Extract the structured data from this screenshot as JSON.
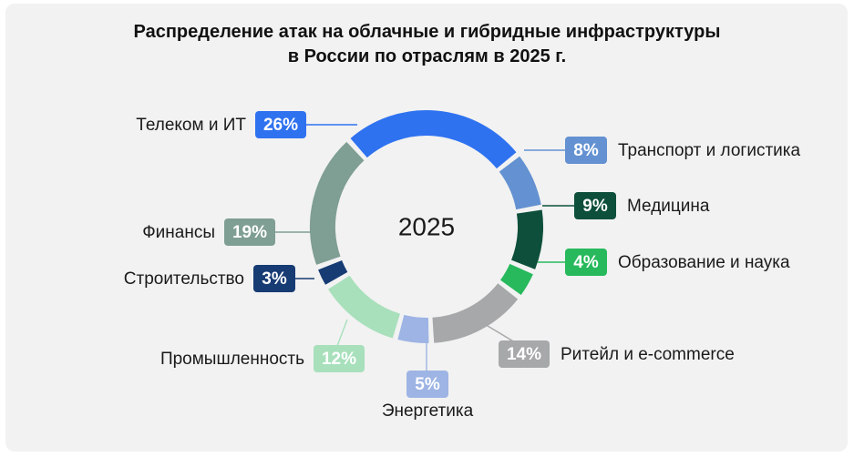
{
  "title": {
    "line1": "Распределение атак на облачные и гибридные инфраструктуры",
    "line2": "в России по отраслям в 2025 г."
  },
  "chart_data": {
    "type": "pie",
    "donut": true,
    "center_label": "2025",
    "unit": "%",
    "slices": [
      {
        "name": "Телеком и ИТ",
        "value": 26,
        "label": "26%",
        "color": "#2f72f0"
      },
      {
        "name": "Транспорт и логистика",
        "value": 8,
        "label": "8%",
        "color": "#6391d1"
      },
      {
        "name": "Медицина",
        "value": 9,
        "label": "9%",
        "color": "#0d4f3a"
      },
      {
        "name": "Образование и наука",
        "value": 4,
        "label": "4%",
        "color": "#27b95c"
      },
      {
        "name": "Ритейл и e-commerce",
        "value": 14,
        "label": "14%",
        "color": "#a6a8a9"
      },
      {
        "name": "Энергетика",
        "value": 5,
        "label": "5%",
        "color": "#9db4e4"
      },
      {
        "name": "Промышленность",
        "value": 12,
        "label": "12%",
        "color": "#a8e0bc"
      },
      {
        "name": "Строительство",
        "value": 3,
        "label": "3%",
        "color": "#173b73"
      },
      {
        "name": "Финансы",
        "value": 19,
        "label": "19%",
        "color": "#7f9e94"
      }
    ]
  }
}
